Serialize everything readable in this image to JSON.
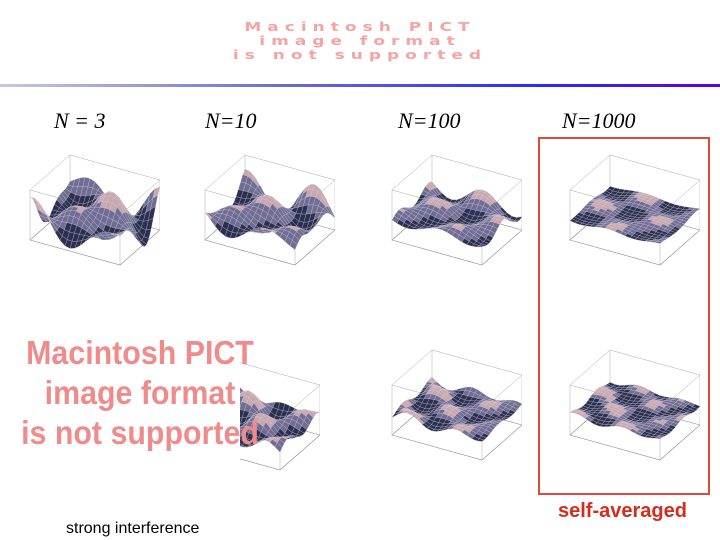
{
  "top_placeholder": {
    "lines": [
      "Macintosh PICT",
      "image format",
      "is not supported"
    ]
  },
  "columns": [
    {
      "label": "N = 3"
    },
    {
      "label": "N=10"
    },
    {
      "label": "N=100"
    },
    {
      "label": "N=1000"
    }
  ],
  "left_placeholder": {
    "lines": [
      "Macintosh PICT",
      "image format",
      "is not supported"
    ]
  },
  "captions": {
    "left": "strong interference",
    "right": "self-averaged"
  },
  "colors": {
    "placeholder_text": "#f08b8b",
    "frame": "#e04a3a",
    "caption_right": "#d42d1d",
    "surface_dark": "#2b3050",
    "surface_mid": "#6f6d93",
    "surface_light": "#c9a7ae"
  }
}
